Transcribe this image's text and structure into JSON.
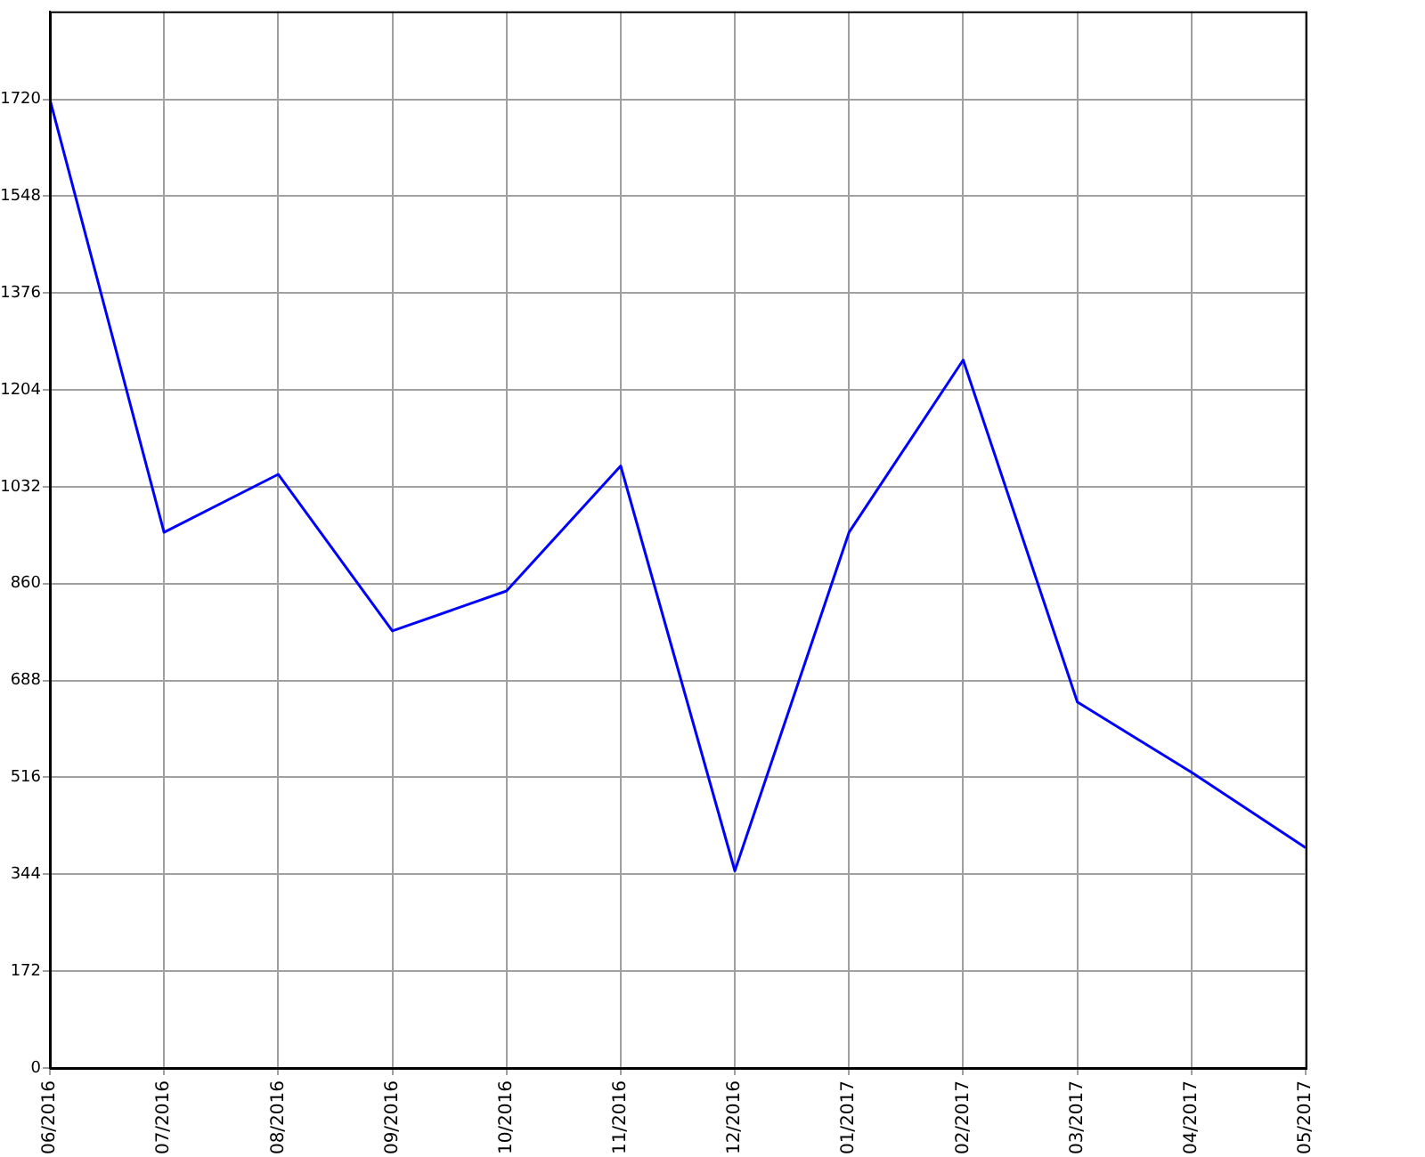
{
  "chart_data": {
    "type": "line",
    "categories": [
      "06/2016",
      "07/2016",
      "08/2016",
      "09/2016",
      "10/2016",
      "11/2016",
      "12/2016",
      "01/2017",
      "02/2017",
      "03/2017",
      "04/2017",
      "05/2017"
    ],
    "series": [
      {
        "color": "#0000ff",
        "values": [
          1720,
          951,
          1054,
          776,
          847,
          1069,
          350,
          951,
          1257,
          650,
          525,
          391
        ]
      }
    ],
    "ylim": [
      0,
      1876
    ],
    "yticks": [
      0,
      172,
      344,
      516,
      688,
      860,
      1032,
      1204,
      1376,
      1548,
      1720
    ],
    "grid": true,
    "legend": false,
    "marker": "none",
    "line_style": "solid"
  }
}
